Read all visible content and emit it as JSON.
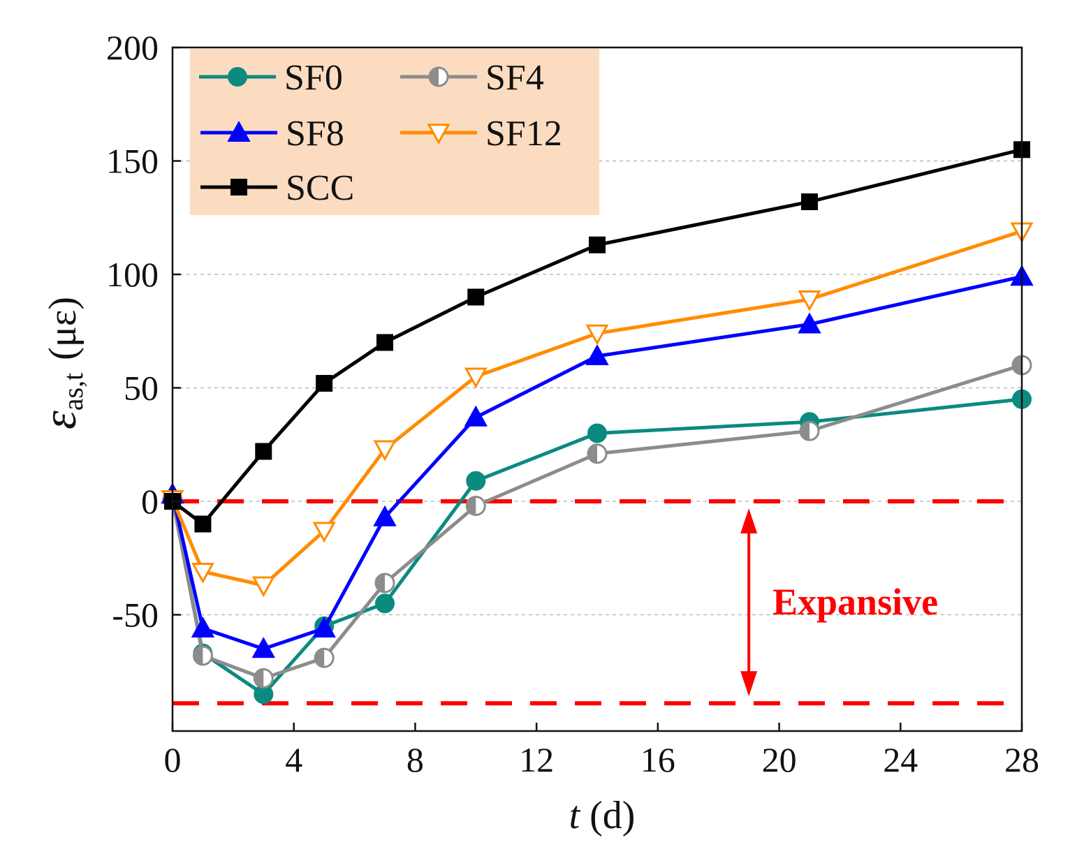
{
  "chart_data": {
    "type": "line",
    "xlabel_italic": "t",
    "xlabel_unit": "(d)",
    "ylabel_symbol": "ε",
    "ylabel_subscript": "as,t",
    "ylabel_unit": "(με)",
    "xlim": [
      0,
      28
    ],
    "ylim": [
      -100,
      200
    ],
    "xticks": [
      "0",
      "4",
      "8",
      "12",
      "16",
      "20",
      "24",
      "28"
    ],
    "xtick_values": [
      0,
      4,
      8,
      12,
      16,
      20,
      24,
      28
    ],
    "yticks": [
      "200",
      "150",
      "100",
      "50",
      "0",
      "-50"
    ],
    "ytick_values": [
      200,
      150,
      100,
      50,
      0,
      -50
    ],
    "grid": "horizontal dashed at y ticks",
    "legend_position": "top-left",
    "series": [
      {
        "name": "SF0",
        "color": "#0b8a80",
        "marker": "circle",
        "x": [
          0,
          1,
          3,
          5,
          7,
          10,
          14,
          21,
          28
        ],
        "y": [
          1,
          -67,
          -85,
          -55,
          -45,
          9,
          30,
          35,
          45
        ]
      },
      {
        "name": "SF4",
        "color": "#8c8c8c",
        "marker": "half-circle",
        "x": [
          0,
          1,
          3,
          5,
          7,
          10,
          14,
          21,
          28
        ],
        "y": [
          1,
          -68,
          -78,
          -69,
          -36,
          -2,
          21,
          31,
          60
        ]
      },
      {
        "name": "SF8",
        "color": "#0000ff",
        "marker": "triangle-up",
        "x": [
          0,
          1,
          3,
          5,
          7,
          10,
          14,
          21,
          28
        ],
        "y": [
          3,
          -56,
          -65,
          -56,
          -7,
          37,
          64,
          78,
          99
        ]
      },
      {
        "name": "SF12",
        "color": "#ff8c00",
        "marker": "triangle-down-open",
        "x": [
          0,
          1,
          3,
          5,
          7,
          10,
          14,
          21,
          28
        ],
        "y": [
          1,
          -31,
          -37,
          -13,
          23,
          55,
          74,
          89,
          119
        ]
      },
      {
        "name": "SCC",
        "color": "#000000",
        "marker": "square",
        "x": [
          0,
          1,
          3,
          5,
          7,
          10,
          14,
          21,
          28
        ],
        "y": [
          0,
          -10,
          22,
          52,
          70,
          90,
          113,
          132,
          155
        ]
      }
    ],
    "reference_lines": [
      {
        "y": 0,
        "color": "#ff0000",
        "style": "dashed"
      },
      {
        "y": -89,
        "color": "#ff0000",
        "style": "dashed"
      }
    ],
    "annotations": [
      {
        "text": "Expansive",
        "color": "#ff0000",
        "arrow_x": 19,
        "arrow_y": [
          0,
          -89
        ]
      }
    ]
  },
  "colors": {
    "legend_background": "#fbdcc0",
    "reference": "#ff0000",
    "grid": "#b0b0b0"
  }
}
